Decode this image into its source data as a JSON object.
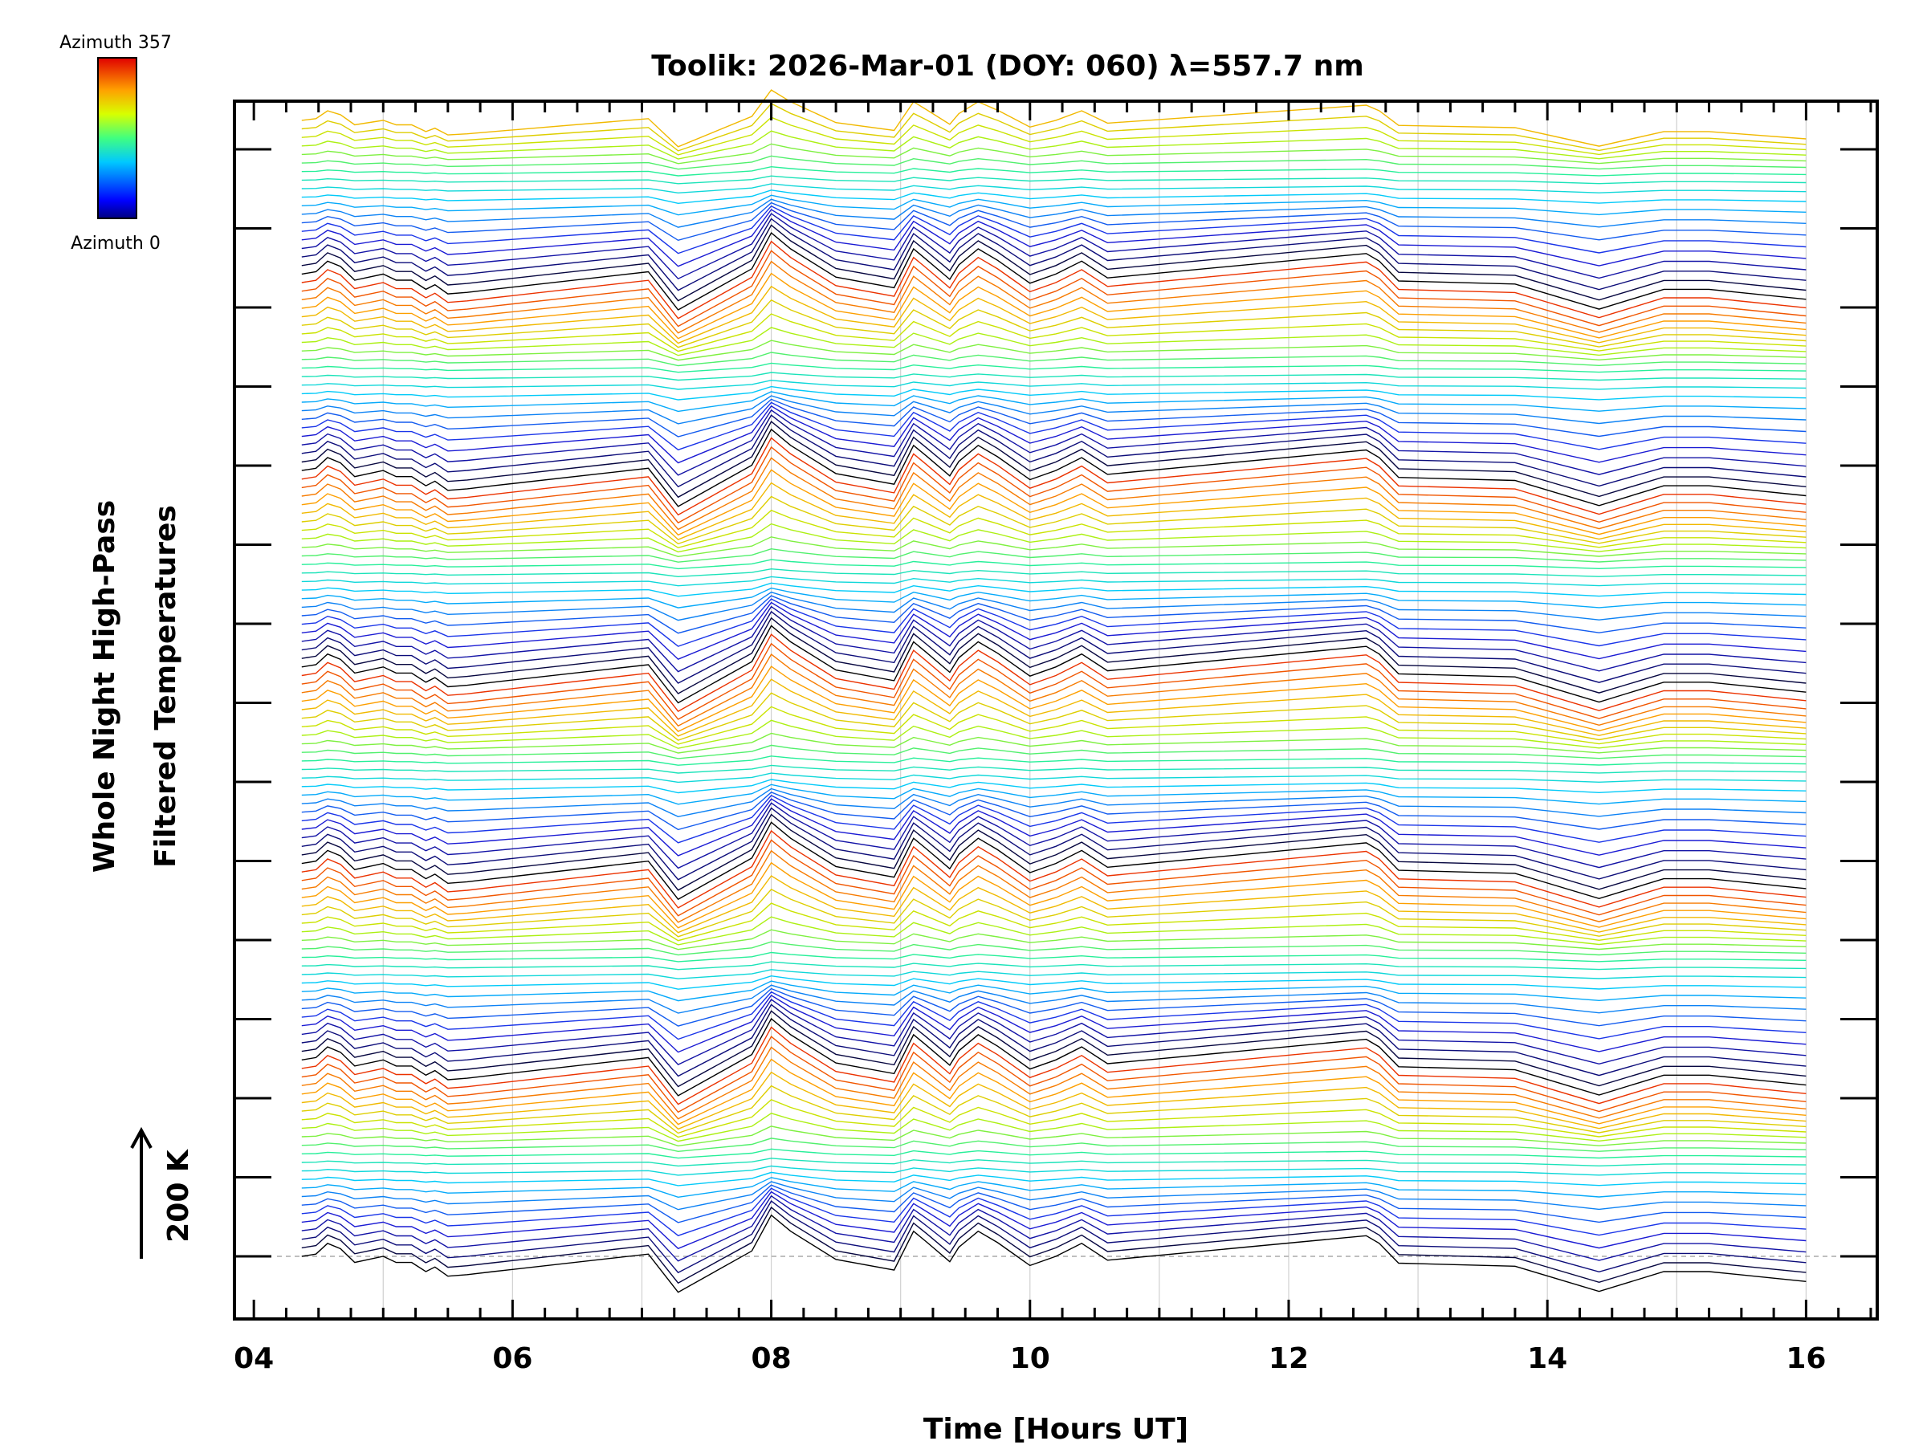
{
  "chart_data": {
    "type": "line",
    "title": "Toolik: 2026-Mar-01 (DOY: 060) λ=557.7 nm",
    "xlabel": "Time [Hours UT]",
    "ylabel_line1": "Whole Night High-Pass",
    "ylabel_line2": "Filtered Temperatures",
    "scale_label": "200 K",
    "xlim": [
      3.85,
      16.55
    ],
    "x_ticks": [
      4,
      6,
      8,
      10,
      12,
      14,
      16
    ],
    "x_tick_labels": [
      "04",
      "06",
      "08",
      "10",
      "12",
      "14",
      "16"
    ],
    "x_minor_step": 0.25,
    "num_y_ticks": 15,
    "colorbar": {
      "top_label": "Azimuth 357",
      "bottom_label": "Azimuth 0",
      "min": 0,
      "max": 357
    },
    "colors": {
      "grid": "#d0d0d0",
      "baseline": "#aaaaaa",
      "axis": "#000000"
    },
    "n_traces": 134,
    "traces_per_cycle": 23,
    "trace_spacing_K": 11.2,
    "time_UT": [
      4.37,
      4.48,
      4.57,
      4.67,
      4.78,
      5.0,
      5.1,
      5.22,
      5.33,
      5.4,
      5.5,
      5.65,
      5.85,
      7.05,
      7.28,
      7.85,
      8.0,
      8.15,
      8.5,
      8.95,
      9.1,
      9.2,
      9.38,
      9.45,
      9.6,
      9.75,
      9.9,
      10.0,
      10.2,
      10.4,
      10.6,
      12.6,
      12.7,
      12.85,
      13.75,
      14.4,
      14.9,
      15.25,
      16.0
    ],
    "base_profile_K": [
      0,
      3,
      17,
      10,
      -8,
      0,
      -8,
      -8,
      -20,
      -14,
      -26,
      -24,
      -20,
      3,
      -47,
      7,
      54,
      33,
      -4,
      -18,
      33,
      19,
      -7,
      12,
      33,
      18,
      0,
      -12,
      0,
      17,
      -5,
      27,
      17,
      -9,
      -13,
      -46,
      -20,
      -20,
      -33
    ]
  }
}
